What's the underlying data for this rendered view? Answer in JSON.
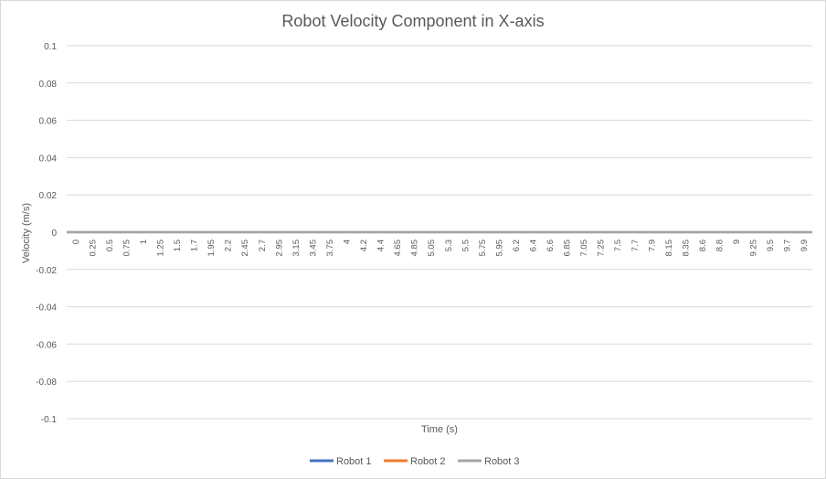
{
  "chart_data": {
    "type": "line",
    "title": "Robot Velocity Component in X-axis",
    "xlabel": "Time (s)",
    "ylabel": "Velocity (m/s)",
    "ylim": [
      -0.1,
      0.1
    ],
    "y_ticks": [
      "0.1",
      "0.08",
      "0.06",
      "0.04",
      "0.02",
      "0",
      "-0.02",
      "-0.04",
      "-0.06",
      "-0.08",
      "-0.1"
    ],
    "y_tick_values": [
      0.1,
      0.08,
      0.06,
      0.04,
      0.02,
      0,
      -0.02,
      -0.04,
      -0.06,
      -0.08,
      -0.1
    ],
    "x_ticks": [
      "0",
      "0.25",
      "0.5",
      "0.75",
      "1",
      "1.25",
      "1.5",
      "1.7",
      "1.95",
      "2.2",
      "2.45",
      "2.7",
      "2.95",
      "3.15",
      "3.45",
      "3.75",
      "4",
      "4.2",
      "4.4",
      "4.65",
      "4.85",
      "5.05",
      "5.3",
      "5.5",
      "5.75",
      "5.95",
      "6.2",
      "6.4",
      "6.6",
      "6.85",
      "7.05",
      "7.25",
      "7.5",
      "7.7",
      "7.9",
      "8.15",
      "8.35",
      "8.6",
      "8.8",
      "9",
      "9.25",
      "9.5",
      "9.7",
      "9.9"
    ],
    "grid": true,
    "legend_position": "bottom",
    "series": [
      {
        "name": "Robot 1",
        "color": "#4472c4",
        "value": 0
      },
      {
        "name": "Robot 2",
        "color": "#ed7d31",
        "value": 0
      },
      {
        "name": "Robot 3",
        "color": "#a5a5a5",
        "value": 0
      }
    ]
  }
}
